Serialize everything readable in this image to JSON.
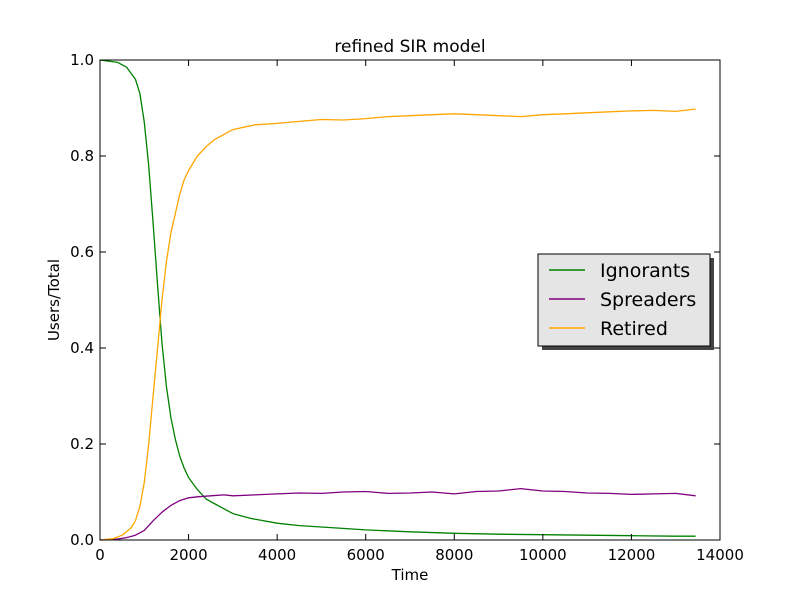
{
  "chart_data": {
    "type": "line",
    "title": "refined SIR model",
    "xlabel": "Time",
    "ylabel": "Users/Total",
    "xlim": [
      0,
      14000
    ],
    "ylim": [
      0.0,
      1.0
    ],
    "xticks": [
      0,
      2000,
      4000,
      6000,
      8000,
      10000,
      12000,
      14000
    ],
    "xtick_labels": [
      "0",
      "2000",
      "4000",
      "6000",
      "8000",
      "10000",
      "12000",
      "14000"
    ],
    "yticks": [
      0.0,
      0.2,
      0.4,
      0.6,
      0.8,
      1.0
    ],
    "ytick_labels": [
      "0.0",
      "0.2",
      "0.4",
      "0.6",
      "0.8",
      "1.0"
    ],
    "grid": false,
    "legend_position": "center-right",
    "series": [
      {
        "name": "Ignorants",
        "color": "#008000",
        "x": [
          0,
          400,
          600,
          800,
          900,
          1000,
          1100,
          1200,
          1300,
          1400,
          1500,
          1600,
          1700,
          1800,
          1900,
          2000,
          2200,
          2400,
          2600,
          2800,
          3000,
          3400,
          4000,
          4500,
          5000,
          6000,
          7000,
          8000,
          9000,
          10000,
          11000,
          12000,
          13000,
          13450
        ],
        "y": [
          1.0,
          0.995,
          0.985,
          0.96,
          0.93,
          0.87,
          0.78,
          0.66,
          0.53,
          0.41,
          0.32,
          0.255,
          0.21,
          0.175,
          0.15,
          0.13,
          0.105,
          0.085,
          0.075,
          0.065,
          0.055,
          0.045,
          0.035,
          0.03,
          0.027,
          0.021,
          0.017,
          0.014,
          0.012,
          0.011,
          0.01,
          0.009,
          0.008,
          0.008
        ]
      },
      {
        "name": "Spreaders",
        "color": "#800080",
        "x": [
          0,
          400,
          600,
          800,
          1000,
          1200,
          1400,
          1600,
          1800,
          2000,
          2200,
          2500,
          2800,
          3000,
          3500,
          4000,
          4500,
          5000,
          5500,
          6000,
          6500,
          7000,
          7500,
          8000,
          8500,
          9000,
          9500,
          10000,
          10500,
          11000,
          11500,
          12000,
          12500,
          13000,
          13450
        ],
        "y": [
          0.0,
          0.002,
          0.005,
          0.01,
          0.02,
          0.04,
          0.058,
          0.072,
          0.082,
          0.088,
          0.09,
          0.092,
          0.094,
          0.092,
          0.094,
          0.096,
          0.098,
          0.097,
          0.1,
          0.101,
          0.097,
          0.098,
          0.1,
          0.096,
          0.101,
          0.102,
          0.107,
          0.102,
          0.101,
          0.098,
          0.097,
          0.095,
          0.096,
          0.097,
          0.092
        ]
      },
      {
        "name": "Retired",
        "color": "#FFA500",
        "x": [
          0,
          300,
          500,
          700,
          800,
          900,
          1000,
          1100,
          1200,
          1300,
          1400,
          1500,
          1600,
          1700,
          1800,
          1900,
          2000,
          2200,
          2400,
          2600,
          2800,
          3000,
          3500,
          4000,
          4500,
          5000,
          5500,
          6000,
          6500,
          7000,
          7500,
          8000,
          8500,
          9000,
          9500,
          10000,
          10500,
          11000,
          11500,
          12000,
          12500,
          13000,
          13450
        ],
        "y": [
          0.0,
          0.003,
          0.01,
          0.025,
          0.04,
          0.07,
          0.12,
          0.2,
          0.3,
          0.4,
          0.5,
          0.58,
          0.64,
          0.68,
          0.72,
          0.75,
          0.77,
          0.8,
          0.82,
          0.835,
          0.845,
          0.855,
          0.865,
          0.868,
          0.872,
          0.876,
          0.875,
          0.878,
          0.882,
          0.884,
          0.886,
          0.888,
          0.886,
          0.884,
          0.882,
          0.886,
          0.888,
          0.89,
          0.892,
          0.894,
          0.895,
          0.893,
          0.898
        ]
      }
    ]
  }
}
